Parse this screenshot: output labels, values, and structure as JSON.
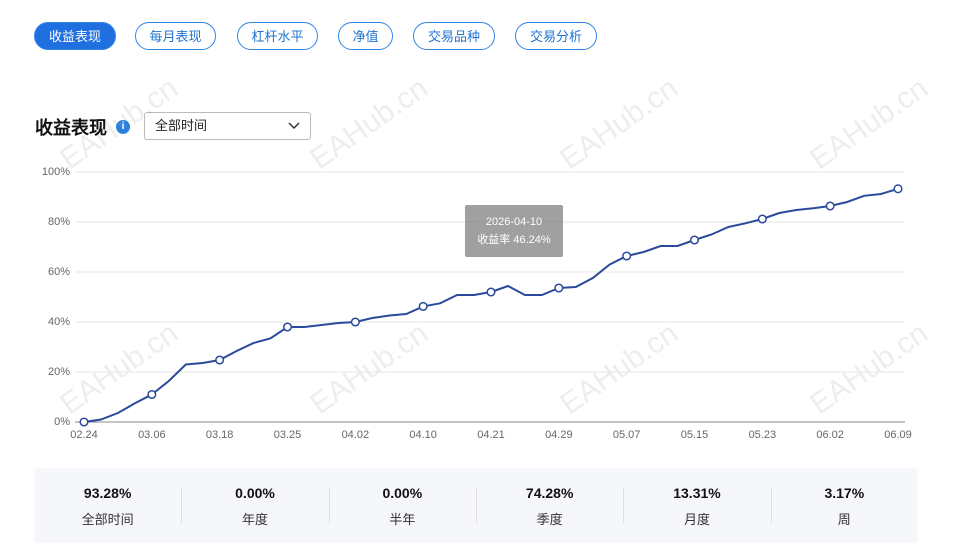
{
  "tabs": [
    "收益表现",
    "每月表现",
    "杠杆水平",
    "净值",
    "交易品种",
    "交易分析"
  ],
  "section_title": "收益表现",
  "dropdown": "全部时间",
  "watermark": "EAHub.cn",
  "chart_data": {
    "type": "line",
    "categories": [
      "02.24",
      null,
      null,
      null,
      "03.06",
      null,
      null,
      null,
      "03.18",
      null,
      null,
      null,
      "03.25",
      null,
      null,
      null,
      "04.02",
      null,
      null,
      null,
      "04.10",
      null,
      null,
      null,
      "04.21",
      null,
      null,
      null,
      "04.29",
      null,
      null,
      null,
      "05.07",
      null,
      null,
      null,
      "05.15",
      null,
      null,
      null,
      "05.23",
      null,
      null,
      null,
      "06.02",
      null,
      null,
      null,
      "06.09"
    ],
    "series": [
      {
        "name": "收益率",
        "color": "#2b4a9b",
        "values": [
          0,
          1,
          3.6,
          7.5,
          11,
          16.4,
          23,
          23.6,
          24.8,
          28.4,
          31.6,
          33.5,
          38,
          38,
          38.8,
          39.6,
          40,
          41.6,
          42.6,
          43.2,
          46.24,
          47.5,
          50.8,
          50.8,
          52,
          54.4,
          50.8,
          50.8,
          53.6,
          54,
          57.6,
          63,
          66.4,
          68,
          70.4,
          70.4,
          72.8,
          75,
          78,
          79.5,
          81.2,
          83.6,
          84.8,
          85.5,
          86.4,
          88,
          90.5,
          91.2,
          93.28
        ]
      }
    ],
    "ylim": [
      0,
      100
    ],
    "yticks": [
      {
        "value": 0,
        "label": "0%"
      },
      {
        "value": 20,
        "label": "20%"
      },
      {
        "value": 40,
        "label": "40%"
      },
      {
        "value": 60,
        "label": "60%"
      },
      {
        "value": 80,
        "label": "80%"
      },
      {
        "value": 100,
        "label": "100%"
      }
    ],
    "grid": true,
    "tooltip": {
      "date": "2026-04-10",
      "text": "收益率 46.24%"
    }
  },
  "stats": [
    {
      "value": "93.28%",
      "label": "全部时间"
    },
    {
      "value": "0.00%",
      "label": "年度"
    },
    {
      "value": "0.00%",
      "label": "半年"
    },
    {
      "value": "74.28%",
      "label": "季度"
    },
    {
      "value": "13.31%",
      "label": "月度"
    },
    {
      "value": "3.17%",
      "label": "周"
    }
  ]
}
